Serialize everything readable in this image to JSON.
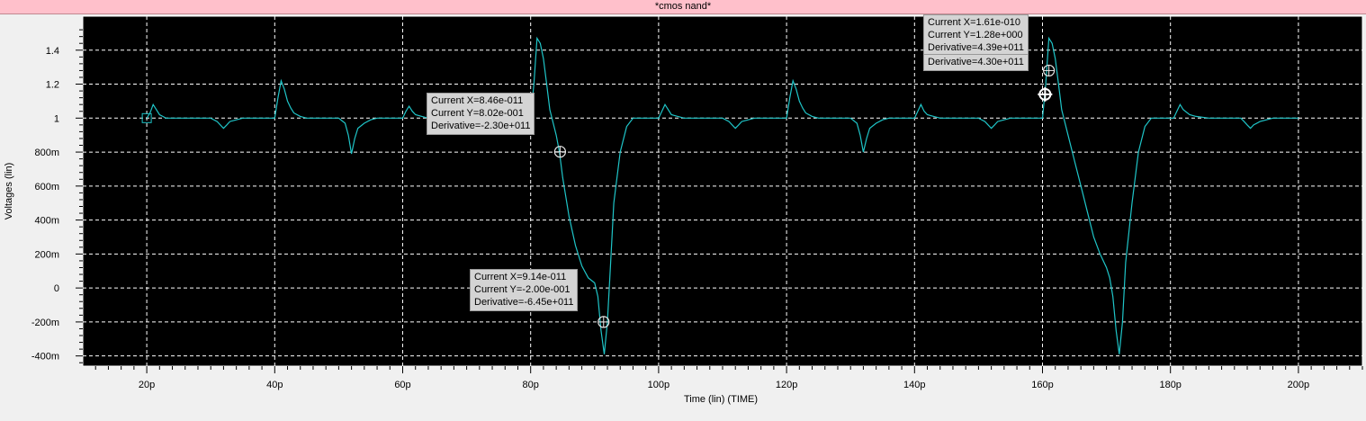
{
  "window": {
    "title": "*cmos nand*"
  },
  "chart_data": {
    "type": "line",
    "title": "*cmos nand*",
    "xlabel": "Time (lin) (TIME)",
    "ylabel": "Voltages (lin)",
    "xlim": [
      10,
      210
    ],
    "ylim": [
      -0.46,
      1.6
    ],
    "grid": true,
    "background": "#000000",
    "trace_color": "#1fc5c8",
    "grid_color": "#ffffff",
    "x_ticks": [
      {
        "value": 20,
        "label": "20p"
      },
      {
        "value": 40,
        "label": "40p"
      },
      {
        "value": 60,
        "label": "60p"
      },
      {
        "value": 80,
        "label": "80p"
      },
      {
        "value": 100,
        "label": "100p"
      },
      {
        "value": 120,
        "label": "120p"
      },
      {
        "value": 140,
        "label": "140p"
      },
      {
        "value": 160,
        "label": "160p"
      },
      {
        "value": 180,
        "label": "180p"
      },
      {
        "value": 200,
        "label": "200p"
      }
    ],
    "y_ticks": [
      {
        "value": -0.4,
        "label": "-400m"
      },
      {
        "value": -0.2,
        "label": "-200m"
      },
      {
        "value": 0,
        "label": "0"
      },
      {
        "value": 0.2,
        "label": "200m"
      },
      {
        "value": 0.4,
        "label": "400m"
      },
      {
        "value": 0.6,
        "label": "600m"
      },
      {
        "value": 0.8,
        "label": "800m"
      },
      {
        "value": 1.0,
        "label": "1"
      },
      {
        "value": 1.2,
        "label": "1.2"
      },
      {
        "value": 1.4,
        "label": "1.4"
      }
    ],
    "series": [
      {
        "x": [
          20,
          20.5,
          21,
          21.5,
          22,
          22.5,
          23,
          24,
          25,
          27,
          30,
          31,
          31.5,
          32,
          32.5,
          33,
          34,
          35,
          36,
          38,
          40,
          40.5,
          41,
          41.5,
          42,
          42.5,
          43,
          44,
          45,
          46,
          48,
          50,
          51,
          51.5,
          52,
          52.5,
          53,
          54,
          55,
          56,
          58,
          60,
          60.5,
          61,
          61.5,
          62,
          63,
          64,
          66,
          70,
          75,
          78,
          79,
          80,
          80.5,
          81,
          81.5,
          82,
          82.5,
          83,
          84,
          84.5,
          85,
          86,
          87,
          88,
          89,
          90,
          90.5,
          91,
          91.5,
          92,
          92.5,
          93,
          94,
          95,
          96,
          97,
          98,
          100,
          100.5,
          101,
          101.5,
          102,
          103,
          104,
          106,
          110,
          111,
          111.5,
          112,
          112.5,
          113,
          114,
          115,
          116,
          118,
          120,
          120.5,
          121,
          121.5,
          122,
          122.5,
          123,
          124,
          125,
          126,
          128,
          130,
          131,
          131.5,
          132,
          132.5,
          133,
          134,
          135,
          136,
          138,
          140,
          140.5,
          141,
          141.5,
          142,
          143,
          144,
          146,
          150,
          151,
          151.5,
          152,
          152.5,
          153,
          154,
          155,
          156,
          158,
          160,
          160.5,
          161,
          161.5,
          162,
          162.5,
          163,
          164,
          165,
          166,
          167,
          168,
          169,
          170,
          170.5,
          171,
          171.5,
          172,
          172.5,
          173,
          174,
          175,
          176,
          177,
          178,
          180,
          180.5,
          181,
          181.5,
          182,
          183,
          184,
          186,
          190,
          191,
          191.5,
          192,
          192.5,
          193,
          194,
          195,
          196,
          198,
          200
        ],
        "y": [
          1.0,
          1.03,
          1.08,
          1.05,
          1.02,
          1.01,
          1.0,
          1.0,
          1.0,
          1.0,
          1.0,
          0.98,
          0.96,
          0.94,
          0.96,
          0.98,
          0.99,
          1.0,
          1.0,
          1.0,
          1.0,
          1.12,
          1.22,
          1.17,
          1.1,
          1.06,
          1.03,
          1.01,
          1.0,
          1.0,
          1.0,
          1.0,
          0.97,
          0.9,
          0.79,
          0.88,
          0.94,
          0.97,
          0.99,
          1.0,
          1.0,
          1.0,
          1.04,
          1.07,
          1.04,
          1.02,
          1.01,
          1.0,
          1.0,
          1.0,
          1.0,
          1.0,
          1.0,
          1.0,
          1.2,
          1.47,
          1.44,
          1.35,
          1.2,
          1.05,
          0.9,
          0.8,
          0.65,
          0.42,
          0.25,
          0.13,
          0.06,
          0.03,
          -0.05,
          -0.25,
          -0.39,
          -0.2,
          0.15,
          0.5,
          0.8,
          0.95,
          1.0,
          1.0,
          1.0,
          1.0,
          1.04,
          1.08,
          1.05,
          1.02,
          1.01,
          1.0,
          1.0,
          1.0,
          0.98,
          0.96,
          0.94,
          0.96,
          0.98,
          0.99,
          1.0,
          1.0,
          1.0,
          1.0,
          1.12,
          1.22,
          1.17,
          1.1,
          1.06,
          1.03,
          1.01,
          1.0,
          1.0,
          1.0,
          1.0,
          0.97,
          0.9,
          0.8,
          0.88,
          0.94,
          0.97,
          0.99,
          1.0,
          1.0,
          1.0,
          1.04,
          1.08,
          1.04,
          1.02,
          1.01,
          1.0,
          1.0,
          1.0,
          0.98,
          0.96,
          0.94,
          0.96,
          0.98,
          0.99,
          1.0,
          1.0,
          1.0,
          1.0,
          1.2,
          1.47,
          1.44,
          1.35,
          1.2,
          1.05,
          0.9,
          0.75,
          0.6,
          0.45,
          0.3,
          0.2,
          0.12,
          0.06,
          -0.05,
          -0.25,
          -0.39,
          -0.2,
          0.15,
          0.5,
          0.8,
          0.95,
          1.0,
          1.0,
          1.0,
          1.0,
          1.04,
          1.08,
          1.05,
          1.02,
          1.01,
          1.0,
          1.0,
          1.0,
          0.98,
          0.96,
          0.94,
          0.96,
          0.98,
          0.99,
          1.0,
          1.0,
          1.0
        ]
      }
    ],
    "cursors": [
      {
        "x": 20,
        "y": 1.0,
        "shape": "square",
        "lines": []
      },
      {
        "x": 84.6,
        "y": 0.802,
        "shape": "circle",
        "lines": [
          "Current X=8.46e-011",
          "Current Y=8.02e-001",
          "Derivative=-2.30e+011"
        ]
      },
      {
        "x": 91.4,
        "y": -0.2,
        "shape": "circle",
        "lines": [
          "Current X=9.14e-011",
          "Current Y=-2.00e-001",
          "Derivative=-6.45e+011"
        ]
      },
      {
        "x": 161.0,
        "y": 1.28,
        "shape": "circle",
        "lines": [
          "Current X=1.61e-010",
          "Current Y=1.28e+000",
          "Derivative=4.39e+011"
        ]
      },
      {
        "x": 160.4,
        "y": 1.14,
        "shape": "crosshair",
        "lines": [
          "Derivative=4.30e+011"
        ]
      }
    ]
  }
}
